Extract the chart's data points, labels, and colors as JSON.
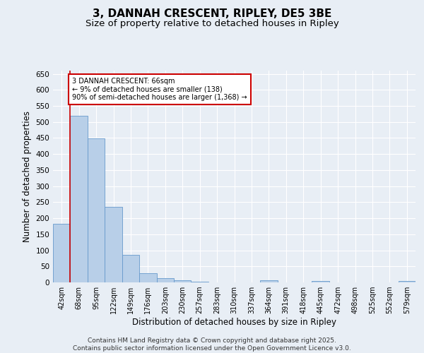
{
  "title": "3, DANNAH CRESCENT, RIPLEY, DE5 3BE",
  "subtitle": "Size of property relative to detached houses in Ripley",
  "xlabel": "Distribution of detached houses by size in Ripley",
  "ylabel": "Number of detached properties",
  "categories": [
    "42sqm",
    "68sqm",
    "95sqm",
    "122sqm",
    "149sqm",
    "176sqm",
    "203sqm",
    "230sqm",
    "257sqm",
    "283sqm",
    "310sqm",
    "337sqm",
    "364sqm",
    "391sqm",
    "418sqm",
    "445sqm",
    "472sqm",
    "498sqm",
    "525sqm",
    "552sqm",
    "579sqm"
  ],
  "values": [
    183,
    520,
    449,
    235,
    86,
    28,
    14,
    7,
    3,
    1,
    1,
    1,
    7,
    0,
    0,
    5,
    0,
    0,
    0,
    0,
    4
  ],
  "bar_color": "#b8cfe8",
  "bar_edge_color": "#6699cc",
  "vline_color": "#cc0000",
  "annotation_text": "3 DANNAH CRESCENT: 66sqm\n← 9% of detached houses are smaller (138)\n90% of semi-detached houses are larger (1,368) →",
  "annotation_box_color": "#ffffff",
  "annotation_box_edge": "#cc0000",
  "ylim": [
    0,
    660
  ],
  "yticks": [
    0,
    50,
    100,
    150,
    200,
    250,
    300,
    350,
    400,
    450,
    500,
    550,
    600,
    650
  ],
  "background_color": "#e8eef5",
  "plot_bg_color": "#e8eef5",
  "footer": "Contains HM Land Registry data © Crown copyright and database right 2025.\nContains public sector information licensed under the Open Government Licence v3.0.",
  "title_fontsize": 11,
  "subtitle_fontsize": 9.5,
  "xlabel_fontsize": 8.5,
  "ylabel_fontsize": 8.5,
  "footer_fontsize": 6.5,
  "tick_fontsize": 7,
  "ytick_fontsize": 7.5
}
